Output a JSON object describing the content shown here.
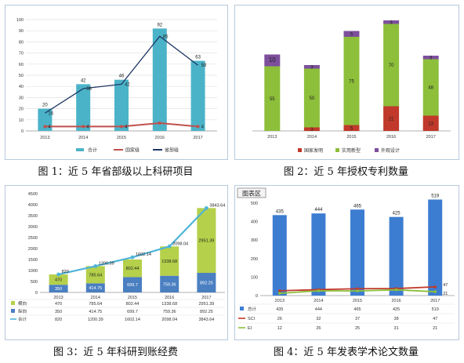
{
  "captions": [
    "图 1：近 5 年省部级以上科研项目",
    "图 2：近 5 年授权专利数量",
    "图 3：近 5 年科研到账经费",
    "图 4：近 5 年发表学术论文数量"
  ],
  "chart_data": [
    {
      "type": "bar",
      "categories": [
        "2013",
        "2014",
        "2015",
        "2016",
        "2017"
      ],
      "ylim": [
        0,
        100
      ],
      "yticks": [
        0,
        10,
        20,
        30,
        40,
        50,
        60,
        70,
        80,
        90,
        100
      ],
      "series": [
        {
          "name": "合计",
          "kind": "bar",
          "color": "#4bb3c8",
          "values": [
            20,
            42,
            46,
            92,
            63
          ]
        },
        {
          "name": "国家级",
          "kind": "line",
          "color": "#c0504d",
          "values": [
            4,
            4,
            4,
            7,
            4
          ],
          "labels": [
            "4",
            "4",
            "4",
            "",
            "4"
          ]
        },
        {
          "name": "省部级",
          "kind": "line",
          "color": "#1f3864",
          "values": [
            16,
            38,
            42,
            85,
            59
          ]
        }
      ]
    },
    {
      "type": "bar",
      "stacked": true,
      "categories": [
        "2013",
        "2014",
        "2015",
        "2016",
        "2017"
      ],
      "ylim": [
        0,
        100
      ],
      "series": [
        {
          "name": "国家发明",
          "color": "#c0392b",
          "values": [
            0,
            3,
            5,
            21,
            13
          ],
          "labels": [
            "0",
            "3",
            "5",
            "21",
            "13"
          ]
        },
        {
          "name": "实用新型",
          "color": "#8dbf3a",
          "values": [
            55,
            50,
            75,
            70,
            48
          ],
          "labels": [
            "55",
            "50",
            "75",
            "70",
            "48"
          ]
        },
        {
          "name": "外观设计",
          "color": "#7d4f9c",
          "values": [
            10,
            3,
            5,
            3,
            3
          ],
          "labels": [
            "10",
            "3",
            "5",
            "3",
            "3"
          ]
        }
      ]
    },
    {
      "type": "bar",
      "stacked": true,
      "categories": [
        "2013",
        "2014",
        "2015",
        "2016",
        "2017"
      ],
      "ylim": [
        0,
        4500
      ],
      "yticks": [
        0,
        500,
        1000,
        1500,
        2000,
        2500,
        3000,
        3500,
        4000,
        4500
      ],
      "series": [
        {
          "name": "纵向",
          "kind": "bar",
          "color": "#4a7fc1",
          "values": [
            350,
            414.75,
            699.7,
            759.36,
            892.25
          ],
          "labels": [
            "350",
            "414.75",
            "699.7",
            "759.36",
            "892.25"
          ]
        },
        {
          "name": "横向",
          "kind": "bar",
          "color": "#b5d04a",
          "values": [
            470,
            785.64,
            802.44,
            1338.68,
            2951.39
          ],
          "labels": [
            "470",
            "785.64",
            "802.44",
            "1338.68",
            "2951.39"
          ]
        },
        {
          "name": "合计",
          "kind": "line",
          "color": "#4fb4d8",
          "values": [
            820,
            1200.39,
            1602.14,
            2098.04,
            3843.64
          ],
          "labels": [
            "820",
            "1200.39",
            "1602.14",
            "2098.04",
            "3843.64"
          ]
        }
      ],
      "table_rows": [
        {
          "name": "横向",
          "values": [
            "470",
            "785.64",
            "802.44",
            "1338.68",
            "2951.39"
          ]
        },
        {
          "name": "纵向",
          "values": [
            "350",
            "414.75",
            "699.7",
            "759.36",
            "892.25"
          ]
        },
        {
          "name": "合计",
          "values": [
            "820",
            "1200.39",
            "1602.14",
            "2098.04",
            "3843.64"
          ]
        }
      ]
    },
    {
      "type": "bar",
      "title_tag": "图表区",
      "categories": [
        "2013",
        "2014",
        "2015",
        "2016",
        "2017"
      ],
      "ylim": [
        0,
        500
      ],
      "yticks": [
        0,
        100,
        200,
        300,
        400,
        500
      ],
      "series": [
        {
          "name": "总计",
          "kind": "bar",
          "color": "#3d7dd1",
          "values": [
            435,
            444,
            465,
            425,
            519
          ],
          "labels": [
            "435",
            "444",
            "465",
            "425",
            "519"
          ]
        },
        {
          "name": "SCI",
          "kind": "line",
          "color": "#c0392b",
          "values": [
            26,
            32,
            37,
            38,
            47
          ],
          "labels": [
            "",
            "",
            "",
            "",
            "47"
          ]
        },
        {
          "name": "EI",
          "kind": "line",
          "color": "#8dbf3a",
          "values": [
            12,
            26,
            25,
            31,
            21
          ],
          "labels": [
            "",
            "",
            "",
            "",
            "21"
          ]
        }
      ],
      "table_rows": [
        {
          "name": "总计",
          "values": [
            "435",
            "444",
            "465",
            "425",
            "519"
          ]
        },
        {
          "name": "SCI",
          "values": [
            "26",
            "32",
            "37",
            "38",
            "47"
          ]
        },
        {
          "name": "EI",
          "values": [
            "12",
            "26",
            "25",
            "31",
            "21"
          ]
        }
      ]
    }
  ]
}
